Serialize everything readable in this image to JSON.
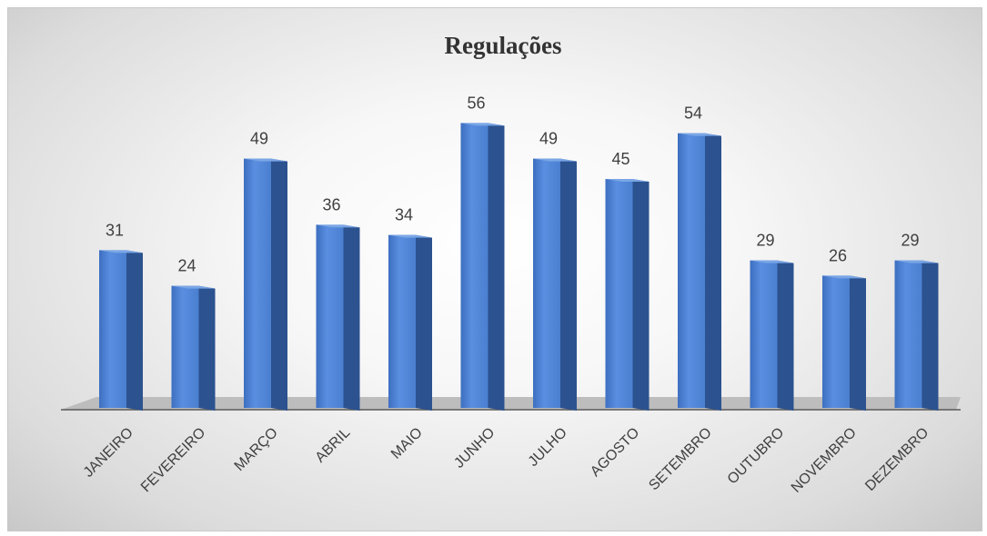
{
  "chart_data": {
    "type": "bar",
    "title": "Regulações",
    "xlabel": "",
    "ylabel": "",
    "categories": [
      "JANEIRO",
      "FEVEREIRO",
      "MARÇO",
      "ABRIL",
      "MAIO",
      "JUNHO",
      "JULHO",
      "AGOSTO",
      "SETEMBRO",
      "OUTUBRO",
      "NOVEMBRO",
      "DEZEMBRO"
    ],
    "values": [
      31,
      24,
      49,
      36,
      34,
      56,
      49,
      45,
      54,
      29,
      26,
      29
    ],
    "ylim": [
      0,
      60
    ],
    "grid": false,
    "legend": "none",
    "colors": {
      "bar_front": "#4a7fd0",
      "bar_side": "#2c528f",
      "bar_top": "#7aa6e6",
      "floor": "#bdbdbd",
      "axis": "#595959"
    }
  }
}
